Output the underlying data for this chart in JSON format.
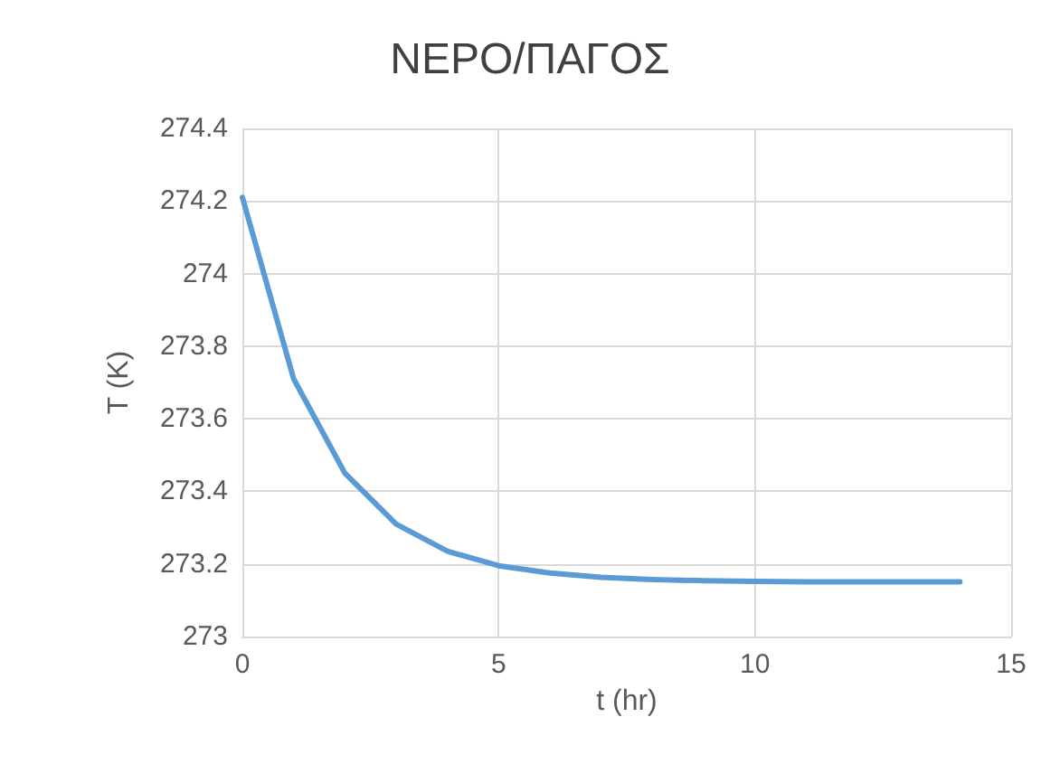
{
  "chart_data": {
    "type": "line",
    "title": "ΝΕΡΟ/ΠΑΓΟΣ",
    "xlabel": "t (hr)",
    "ylabel": "T (K)",
    "x": [
      0,
      1,
      2,
      3,
      4,
      5,
      6,
      7,
      8,
      9,
      10,
      11,
      12,
      13,
      14
    ],
    "series": [
      {
        "color": "#5b9bd5",
        "values": [
          274.21,
          273.71,
          273.45,
          273.31,
          273.235,
          273.195,
          273.175,
          273.163,
          273.157,
          273.154,
          273.152,
          273.151,
          273.151,
          273.151,
          273.151
        ]
      }
    ],
    "xlim": [
      0,
      15
    ],
    "xticks": [
      0,
      5,
      10,
      15
    ],
    "ylim": [
      273,
      274.4
    ],
    "yticks": [
      273,
      273.2,
      273.4,
      273.6,
      273.8,
      274,
      274.2,
      274.4
    ],
    "grid": true,
    "marker": "none",
    "line_style": "solid"
  }
}
